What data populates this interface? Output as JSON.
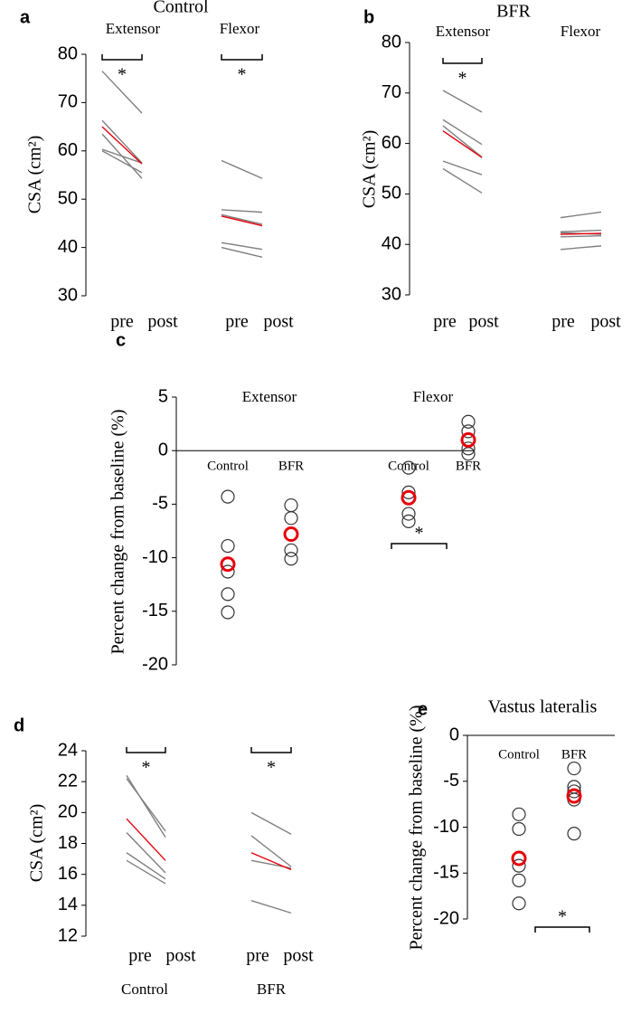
{
  "chart_data": [
    {
      "type": "slope",
      "panel_label": "a",
      "title": "Control",
      "ylabel": "CSA (cm²)",
      "ylim": [
        30,
        80
      ],
      "yticks": [
        30,
        40,
        50,
        60,
        70,
        80
      ],
      "categories": [
        "pre",
        "post"
      ],
      "groups": [
        {
          "name": "Extensor",
          "annotation": "*",
          "series": [
            {
              "color": "#808080",
              "values": [
                76.5,
                67.8
              ]
            },
            {
              "color": "#808080",
              "values": [
                66.3,
                57.5
              ]
            },
            {
              "color": "#808080",
              "values": [
                63.5,
                54.3
              ]
            },
            {
              "color": "#808080",
              "values": [
                60.3,
                57.5
              ]
            },
            {
              "color": "#808080",
              "values": [
                60.0,
                55.5
              ]
            },
            {
              "color": "#e8000b",
              "values": [
                65.0,
                57.3
              ]
            }
          ]
        },
        {
          "name": "Flexor",
          "annotation": "*",
          "series": [
            {
              "color": "#808080",
              "values": [
                58.0,
                54.3
              ]
            },
            {
              "color": "#808080",
              "values": [
                47.8,
                47.3
              ]
            },
            {
              "color": "#808080",
              "values": [
                46.8,
                44.8
              ]
            },
            {
              "color": "#808080",
              "values": [
                41.0,
                39.6
              ]
            },
            {
              "color": "#808080",
              "values": [
                40.0,
                38.0
              ]
            },
            {
              "color": "#e8000b",
              "values": [
                46.5,
                44.5
              ]
            }
          ]
        }
      ]
    },
    {
      "type": "slope",
      "panel_label": "b",
      "title": "BFR",
      "ylabel": "CSA (cm²)",
      "ylim": [
        30,
        80
      ],
      "yticks": [
        30,
        40,
        50,
        60,
        70,
        80
      ],
      "categories": [
        "pre",
        "post"
      ],
      "groups": [
        {
          "name": "Extensor",
          "annotation": "*",
          "series": [
            {
              "color": "#808080",
              "values": [
                70.5,
                66.2
              ]
            },
            {
              "color": "#808080",
              "values": [
                64.7,
                59.8
              ]
            },
            {
              "color": "#808080",
              "values": [
                63.5,
                57.3
              ]
            },
            {
              "color": "#808080",
              "values": [
                56.5,
                53.8
              ]
            },
            {
              "color": "#808080",
              "values": [
                55.0,
                50.2
              ]
            },
            {
              "color": "#e8000b",
              "values": [
                62.5,
                57.2
              ]
            }
          ]
        },
        {
          "name": "Flexor",
          "series": [
            {
              "color": "#808080",
              "values": [
                45.3,
                46.4
              ]
            },
            {
              "color": "#808080",
              "values": [
                42.5,
                42.8
              ]
            },
            {
              "color": "#808080",
              "values": [
                42.3,
                42.0
              ]
            },
            {
              "color": "#808080",
              "values": [
                41.5,
                41.7
              ]
            },
            {
              "color": "#808080",
              "values": [
                39.0,
                39.7
              ]
            },
            {
              "color": "#e8000b",
              "values": [
                42.0,
                42.2
              ]
            }
          ]
        }
      ]
    },
    {
      "type": "dot",
      "panel_label": "c",
      "ylabel": "Percent change from baseline (%)",
      "ylim": [
        -20,
        5
      ],
      "yticks": [
        -20,
        -15,
        -10,
        -5,
        0,
        5
      ],
      "color": "#333333",
      "mean_color": "#e8000b",
      "groups": [
        {
          "name": "Extensor",
          "subgroups": [
            {
              "name": "Control",
              "values": [
                -4.3,
                -8.9,
                -11.3,
                -13.4,
                -15.1
              ],
              "mean": -10.6
            },
            {
              "name": "BFR",
              "values": [
                -5.1,
                -6.3,
                -9.3,
                -10.1
              ],
              "mean": -7.8
            }
          ]
        },
        {
          "name": "Flexor",
          "subgroups": [
            {
              "name": "Control",
              "values": [
                -1.6,
                -3.9,
                -5.9,
                -6.6
              ],
              "mean": -4.4,
              "annotation": "*"
            },
            {
              "name": "BFR",
              "values": [
                2.7,
                1.8,
                0.2,
                -0.3
              ],
              "mean": 1.0
            }
          ]
        }
      ]
    },
    {
      "type": "slope",
      "panel_label": "d",
      "ylabel": "CSA (cm²)",
      "ylim": [
        12,
        24
      ],
      "yticks": [
        12,
        14,
        16,
        18,
        20,
        22,
        24
      ],
      "categories": [
        "pre",
        "post"
      ],
      "groups": [
        {
          "name": "Control",
          "annotation": "*",
          "series": [
            {
              "color": "#808080",
              "values": [
                22.4,
                18.4
              ]
            },
            {
              "color": "#808080",
              "values": [
                22.2,
                18.8
              ]
            },
            {
              "color": "#808080",
              "values": [
                18.7,
                16.1
              ]
            },
            {
              "color": "#808080",
              "values": [
                17.4,
                15.7
              ]
            },
            {
              "color": "#808080",
              "values": [
                16.9,
                15.4
              ]
            },
            {
              "color": "#e8000b",
              "values": [
                19.6,
                16.9
              ]
            }
          ]
        },
        {
          "name": "BFR",
          "annotation": "*",
          "series": [
            {
              "color": "#808080",
              "values": [
                20.0,
                18.6
              ]
            },
            {
              "color": "#808080",
              "values": [
                18.5,
                16.5
              ]
            },
            {
              "color": "#808080",
              "values": [
                16.9,
                16.4
              ]
            },
            {
              "color": "#808080",
              "values": [
                14.3,
                13.5
              ]
            },
            {
              "color": "#e8000b",
              "values": [
                17.4,
                16.3
              ]
            }
          ]
        }
      ]
    },
    {
      "type": "dot",
      "panel_label": "e",
      "title": "Vastus lateralis",
      "ylabel": "Percent change from baseline (%)",
      "ylim": [
        -20,
        0
      ],
      "yticks": [
        -20,
        -15,
        -10,
        -5,
        0
      ],
      "color": "#333333",
      "mean_color": "#e8000b",
      "annotation": "*",
      "groups": [
        {
          "name": "Control",
          "values": [
            -8.6,
            -10.2,
            -14.2,
            -15.8,
            -18.3
          ],
          "mean": -13.4
        },
        {
          "name": "BFR",
          "values": [
            -3.6,
            -5.6,
            -6.1,
            -7.0,
            -10.7
          ],
          "mean": -6.6
        }
      ]
    }
  ]
}
